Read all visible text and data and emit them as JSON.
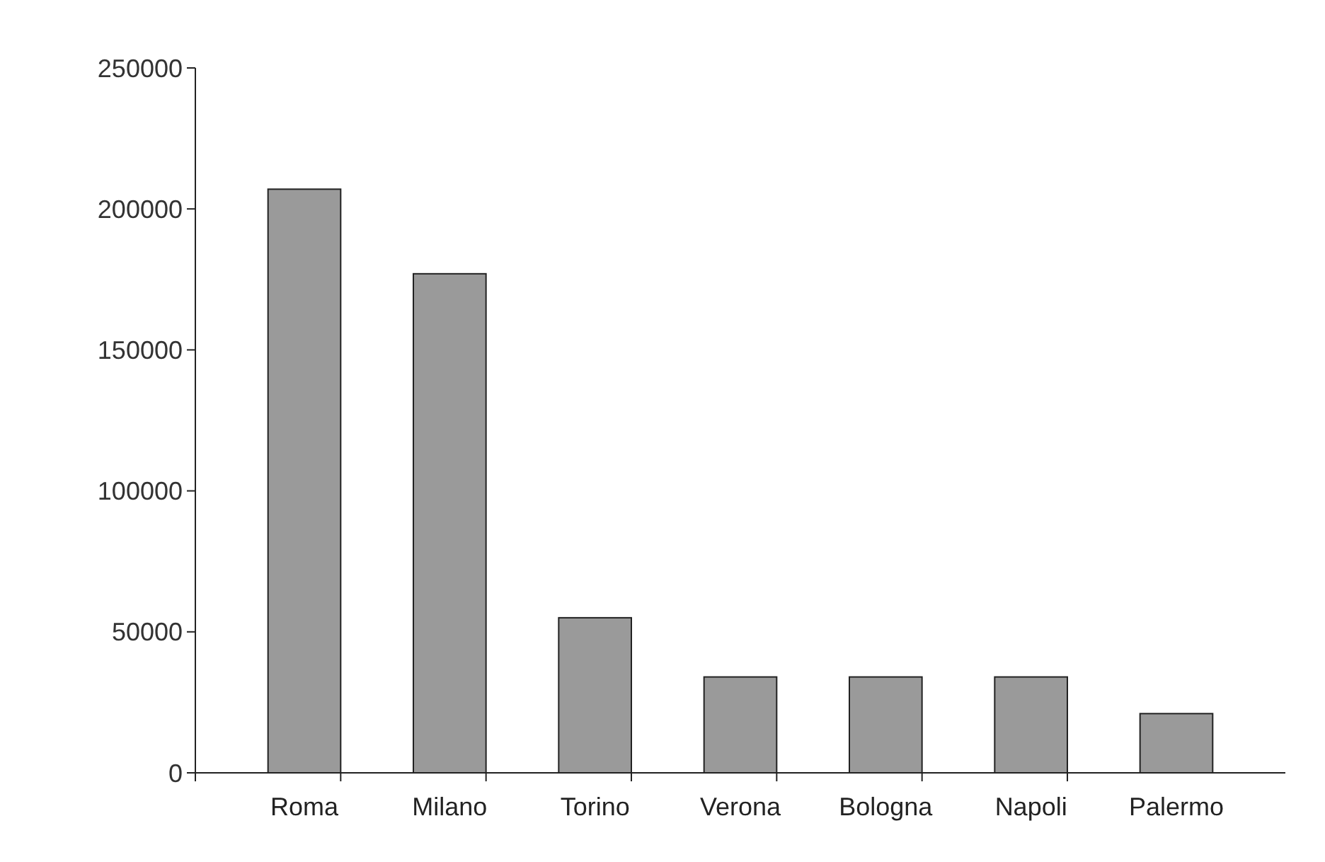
{
  "chart_data": {
    "type": "bar",
    "categories": [
      "Roma",
      "Milano",
      "Torino",
      "Verona",
      "Bologna",
      "Napoli",
      "Palermo"
    ],
    "values": [
      207000,
      177000,
      55000,
      34000,
      34000,
      34000,
      21000
    ],
    "color": "#9a9a9a",
    "ylim": [
      0,
      250000
    ],
    "yticks": [
      0,
      50000,
      100000,
      150000,
      200000,
      250000
    ],
    "grid": false
  }
}
